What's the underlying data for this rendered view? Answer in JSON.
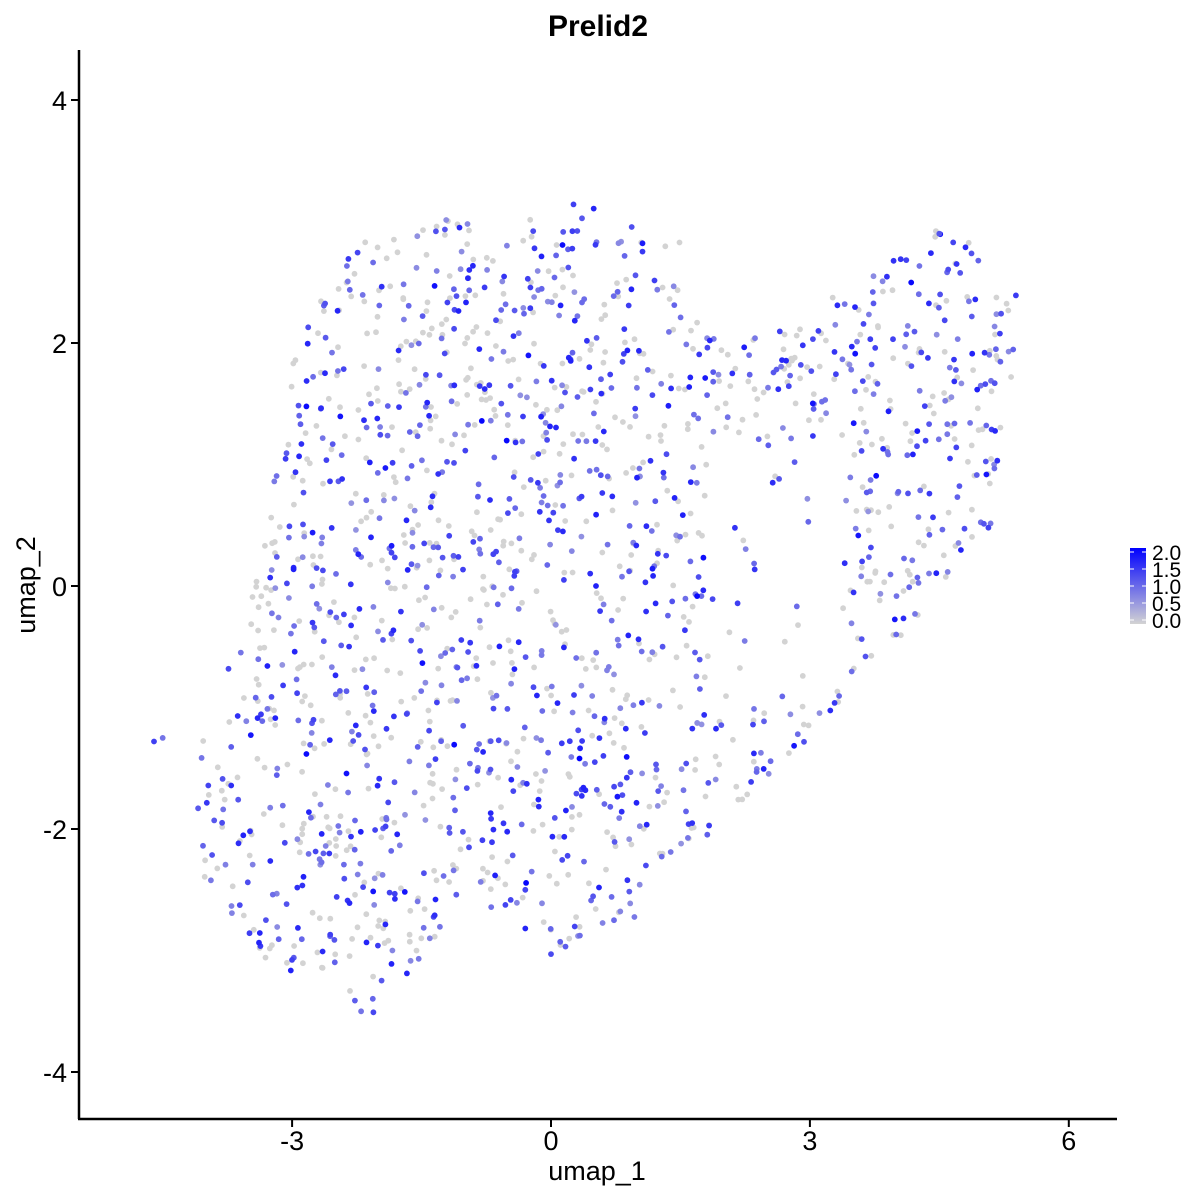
{
  "chart_data": {
    "type": "scatter",
    "title": "Prelid2",
    "xlabel": "umap_1",
    "ylabel": "umap_2",
    "xlim": [
      -5.4,
      6.5
    ],
    "ylim": [
      -4.4,
      4.4
    ],
    "x_ticks": [
      -3,
      0,
      3,
      6
    ],
    "x_tick_labels": [
      "-3",
      "0",
      "3",
      "6"
    ],
    "y_ticks": [
      -4,
      -2,
      0,
      2,
      4
    ],
    "y_tick_labels": [
      "-4",
      "-2",
      "0",
      "2",
      "4"
    ],
    "grid": false,
    "legend_position": "right",
    "color_scale": {
      "low": "#D3D3D3",
      "high": "#0000FF",
      "min": 0,
      "max": 2.0,
      "breaks": [
        2.0,
        1.5,
        1.0,
        0.5,
        0.0
      ],
      "break_labels": [
        "2.0",
        "1.5",
        "1.0",
        "0.5",
        "0.0"
      ]
    },
    "point_count": 1800,
    "highlighted_points": [
      {
        "x": -4.6,
        "y": -1.28,
        "value": 1.4
      },
      {
        "x": -4.5,
        "y": -1.25,
        "value": 0.9
      },
      {
        "x": 0.33,
        "y": -1.42,
        "value": 2.0
      },
      {
        "x": 4.7,
        "y": 2.65,
        "value": 1.5
      },
      {
        "x": 4.5,
        "y": 2.9,
        "value": 1.2
      },
      {
        "x": 0.0,
        "y": -3.03,
        "value": 1.3
      },
      {
        "x": -2.2,
        "y": -3.5,
        "value": 0.9
      },
      {
        "x": 1.1,
        "y": -2.3,
        "value": 1.3
      },
      {
        "x": 0.15,
        "y": 0.05,
        "value": 1.4
      },
      {
        "x": -0.5,
        "y": 0.6,
        "value": 1.3
      }
    ]
  }
}
